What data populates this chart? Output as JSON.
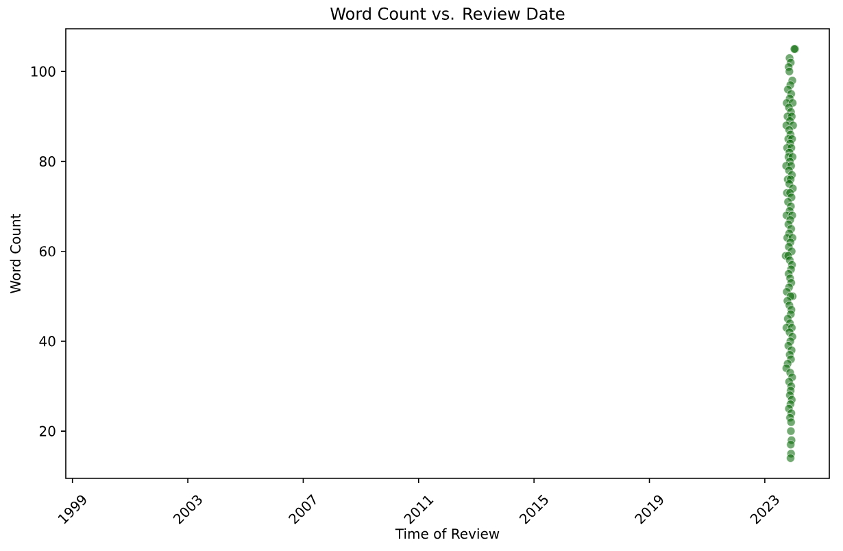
{
  "chart_data": {
    "type": "scatter",
    "title": "Word Count vs. Review Date",
    "xlabel": "Time of Review",
    "ylabel": "Word Count",
    "x": [
      "2024-01-20",
      "2024-01-10",
      "2023-11-10",
      "2023-11-25",
      "2023-10-30",
      "2023-11-08",
      "2023-12-15",
      "2023-11-20",
      "2023-10-20",
      "2023-12-01",
      "2023-11-12",
      "2023-10-05",
      "2023-12-20",
      "2023-11-02",
      "2023-11-28",
      "2023-10-15",
      "2023-12-08",
      "2023-11-15",
      "2023-10-01",
      "2023-12-25",
      "2023-11-05",
      "2023-11-22",
      "2023-10-25",
      "2023-12-12",
      "2023-11-18",
      "2023-10-10",
      "2023-12-03",
      "2023-11-09",
      "2023-10-28",
      "2023-12-18",
      "2023-11-14",
      "2023-09-28",
      "2023-11-30",
      "2023-11-03",
      "2023-12-10",
      "2023-10-18",
      "2023-11-24",
      "2023-11-07",
      "2023-12-22",
      "2023-10-08",
      "2023-11-16",
      "2023-12-05",
      "2023-10-22",
      "2023-11-27",
      "2023-11-11",
      "2023-10-03",
      "2023-12-14",
      "2023-11-19",
      "2023-10-27",
      "2023-12-01",
      "2023-11-06",
      "2023-10-12",
      "2023-12-17",
      "2023-11-21",
      "2023-11-01",
      "2023-12-07",
      "2023-09-22",
      "2023-10-24",
      "2023-11-13",
      "2023-12-11",
      "2023-11-29",
      "2023-10-30",
      "2023-11-17",
      "2023-12-02",
      "2023-11-04",
      "2023-10-06",
      "2023-12-19",
      "2023-11-23",
      "2023-10-14",
      "2023-11-08",
      "2023-12-04",
      "2023-11-26",
      "2023-10-19",
      "2023-11-15",
      "2023-10-02",
      "2023-12-09",
      "2023-11-10",
      "2023-12-16",
      "2023-11-20",
      "2023-10-26",
      "2023-12-06",
      "2023-11-12",
      "2023-11-28",
      "2023-10-17",
      "2023-09-30",
      "2023-11-18",
      "2023-12-13",
      "2023-11-05",
      "2023-12-01",
      "2023-11-24",
      "2023-11-14",
      "2023-12-08",
      "2023-11-22",
      "2023-11-02",
      "2023-12-03",
      "2023-11-16",
      "2023-11-30",
      "2023-11-27",
      "2023-12-05",
      "2023-11-25",
      "2023-11-29",
      "2023-11-23"
    ],
    "values": [
      105,
      105,
      103,
      102,
      101,
      100,
      98,
      97,
      96,
      95,
      94,
      93,
      93,
      92,
      91,
      90,
      90,
      89,
      88,
      88,
      87,
      86,
      85,
      85,
      84,
      83,
      83,
      82,
      81,
      81,
      80,
      79,
      79,
      78,
      77,
      76,
      76,
      75,
      74,
      73,
      73,
      72,
      71,
      70,
      69,
      68,
      68,
      67,
      66,
      65,
      64,
      63,
      63,
      62,
      61,
      60,
      59,
      59,
      58,
      57,
      56,
      55,
      54,
      53,
      52,
      51,
      50,
      50,
      49,
      48,
      47,
      46,
      45,
      44,
      43,
      43,
      42,
      41,
      40,
      39,
      38,
      37,
      36,
      35,
      34,
      33,
      32,
      31,
      30,
      29,
      28,
      27,
      26,
      25,
      24,
      23,
      22,
      20,
      18,
      17,
      15,
      14
    ],
    "color": "#006400",
    "marker": "circle",
    "xlim": [
      "1998-10-09",
      "2025-03-28"
    ],
    "xticks": [
      "1999",
      "2003",
      "2007",
      "2011",
      "2015",
      "2019",
      "2023"
    ],
    "ylim": [
      9.5,
      109.5
    ],
    "yticks": [
      20,
      40,
      60,
      80,
      100
    ]
  }
}
